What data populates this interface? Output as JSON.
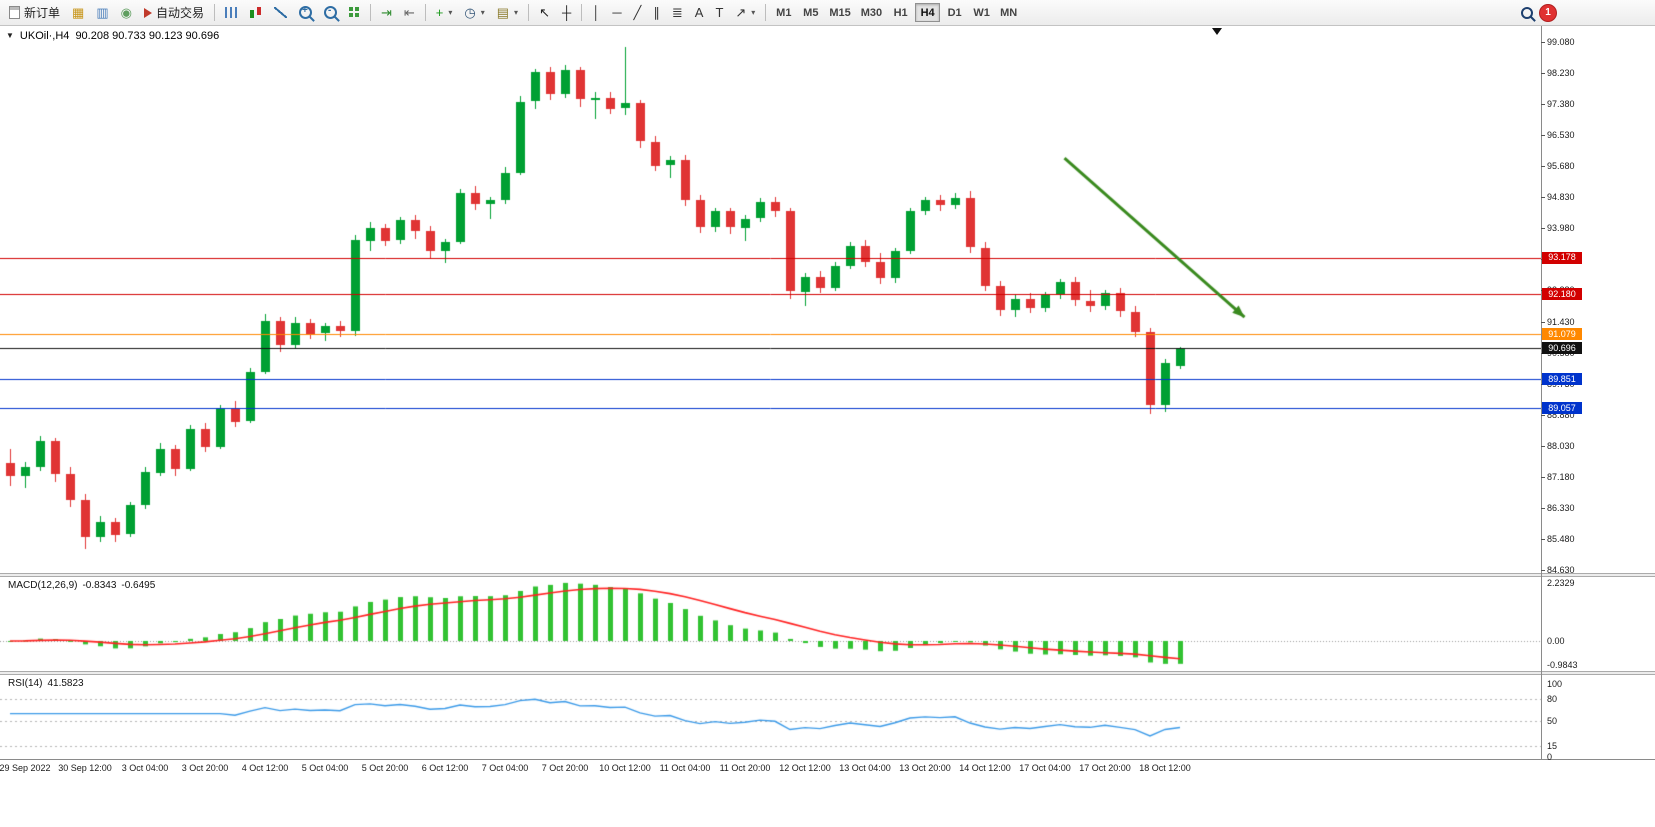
{
  "toolbar": {
    "items": [
      {
        "kind": "btn",
        "name": "new-order-button",
        "icon": "page",
        "label": "新订单"
      },
      {
        "kind": "icon",
        "name": "market-watch-icon",
        "glyph": "▦",
        "color": "#c79416"
      },
      {
        "kind": "icon",
        "name": "data-window-icon",
        "glyph": "▥",
        "color": "#4a7ebb"
      },
      {
        "kind": "icon",
        "name": "navigator-icon",
        "glyph": "◉",
        "color": "#5f9e5f"
      },
      {
        "kind": "btn",
        "name": "auto-trading-button",
        "icon": "play",
        "label": "自动交易"
      },
      {
        "kind": "sep"
      },
      {
        "kind": "css",
        "name": "bar-chart-icon",
        "css": "i-bars"
      },
      {
        "kind": "css",
        "name": "candlestick-icon",
        "css": "i-candle"
      },
      {
        "kind": "css",
        "name": "line-chart-icon",
        "css": "i-line"
      },
      {
        "kind": "css",
        "name": "zoom-in-icon",
        "css": "i-zoom i-zoomin"
      },
      {
        "kind": "css",
        "name": "zoom-out-icon",
        "css": "i-zoom i-zoomout"
      },
      {
        "kind": "css",
        "name": "tile-windows-icon",
        "css": "i-tile"
      },
      {
        "kind": "sep"
      },
      {
        "kind": "icon",
        "name": "auto-scroll-icon",
        "glyph": "⇥",
        "color": "#2e8b2e"
      },
      {
        "kind": "icon",
        "name": "chart-shift-icon",
        "glyph": "⇤",
        "color": "#666666"
      },
      {
        "kind": "sep"
      },
      {
        "kind": "drop",
        "name": "indicators-button",
        "glyph": "+",
        "color": "#1c9a1c"
      },
      {
        "kind": "drop",
        "name": "periods-button",
        "glyph": "◷",
        "color": "#335577"
      },
      {
        "kind": "drop",
        "name": "templates-button",
        "glyph": "▤",
        "color": "#8a7a2a"
      },
      {
        "kind": "sep"
      },
      {
        "kind": "icon",
        "name": "cursor-icon",
        "glyph": "↖",
        "color": "#222222"
      },
      {
        "kind": "icon",
        "name": "crosshair-icon",
        "glyph": "┼",
        "color": "#222222"
      },
      {
        "kind": "sep"
      },
      {
        "kind": "icon",
        "name": "vertical-line-icon",
        "glyph": "│",
        "color": "#333333"
      },
      {
        "kind": "icon",
        "name": "horizontal-line-icon",
        "glyph": "─",
        "color": "#333333"
      },
      {
        "kind": "icon",
        "name": "trendline-icon",
        "glyph": "╱",
        "color": "#333333"
      },
      {
        "kind": "icon",
        "name": "equidistant-channel-icon",
        "glyph": "∥",
        "color": "#333333"
      },
      {
        "kind": "icon",
        "name": "fibonacci-icon",
        "glyph": "≣",
        "color": "#333333"
      },
      {
        "kind": "icon",
        "name": "text-icon",
        "glyph": "A",
        "color": "#333333"
      },
      {
        "kind": "icon",
        "name": "label-icon",
        "glyph": "T",
        "color": "#333333"
      },
      {
        "kind": "drop",
        "name": "shapes-button",
        "glyph": "↗",
        "color": "#333333"
      },
      {
        "kind": "sep"
      },
      {
        "kind": "timeframes"
      },
      {
        "kind": "spacer"
      },
      {
        "kind": "css",
        "name": "search-icon",
        "css": "i-search"
      },
      {
        "kind": "badge",
        "name": "notification-badge",
        "label": "1"
      },
      {
        "kind": "endpad"
      }
    ],
    "timeframes": [
      "M1",
      "M5",
      "M15",
      "M30",
      "H1",
      "H4",
      "D1",
      "W1",
      "MN"
    ],
    "active_timeframe": "H4"
  },
  "chart": {
    "collapse_glyph": "▼",
    "symbol_period": "UKOil·,H4",
    "ohlc_text": "90.208 90.733 90.123 90.696",
    "axis_ticks": [
      "99.080",
      "98.230",
      "97.380",
      "96.530",
      "95.680",
      "94.830",
      "93.980",
      "93.130",
      "92.280",
      "91.430",
      "90.580",
      "89.730",
      "88.880",
      "88.030",
      "87.180",
      "86.330",
      "85.480",
      "84.630"
    ],
    "price_lines": [
      {
        "value": "93.178",
        "color": "#d20000"
      },
      {
        "value": "92.180",
        "color": "#d20000"
      },
      {
        "value": "91.079",
        "color": "#ff8800"
      },
      {
        "value": "90.696",
        "color": "#111111"
      },
      {
        "value": "89.851",
        "color": "#0033cc"
      },
      {
        "value": "89.057",
        "color": "#0033cc"
      }
    ],
    "colors": {
      "bull": "#00a032",
      "bear": "#e03434",
      "macd_hist": "#32c232",
      "macd_signal": "#ff2222",
      "rsi_line": "#3b9ae8"
    }
  },
  "indicators": {
    "macd": {
      "name": "MACD(12,26,9)",
      "value1": "-0.8343",
      "value2": "-0.6495",
      "axis": [
        "2.2329",
        "0.00",
        "-0.9843"
      ]
    },
    "rsi": {
      "name": "RSI(14)",
      "value": "41.5823",
      "axis": [
        "100",
        "80",
        "50",
        "15",
        "0"
      ],
      "levels": [
        80,
        50,
        15
      ]
    }
  },
  "chart_data": {
    "type": "candlestick",
    "symbol": "UKOil",
    "timeframe": "H4",
    "y_axis": {
      "top_price": 99.49,
      "bottom_price": 84.55
    },
    "candles": [
      [
        87.55,
        87.95,
        86.95,
        87.2
      ],
      [
        87.2,
        87.6,
        86.9,
        87.45
      ],
      [
        87.45,
        88.3,
        87.35,
        88.15
      ],
      [
        88.15,
        88.25,
        87.05,
        87.25
      ],
      [
        87.25,
        87.45,
        86.35,
        86.55
      ],
      [
        86.55,
        86.7,
        85.2,
        85.55
      ],
      [
        85.55,
        86.1,
        85.4,
        85.95
      ],
      [
        85.95,
        86.05,
        85.4,
        85.6
      ],
      [
        85.6,
        86.5,
        85.55,
        86.4
      ],
      [
        86.4,
        87.45,
        86.3,
        87.3
      ],
      [
        87.3,
        88.1,
        87.2,
        87.95
      ],
      [
        87.95,
        88.05,
        87.2,
        87.4
      ],
      [
        87.4,
        88.6,
        87.35,
        88.5
      ],
      [
        88.5,
        88.65,
        87.85,
        88.0
      ],
      [
        88.0,
        89.15,
        87.95,
        89.05
      ],
      [
        89.05,
        89.25,
        88.55,
        88.7
      ],
      [
        88.7,
        90.15,
        88.65,
        90.05
      ],
      [
        90.05,
        91.65,
        90.0,
        91.45
      ],
      [
        91.45,
        91.55,
        90.6,
        90.8
      ],
      [
        90.8,
        91.55,
        90.7,
        91.4
      ],
      [
        91.4,
        91.5,
        90.95,
        91.1
      ],
      [
        91.1,
        91.4,
        90.9,
        91.3
      ],
      [
        91.3,
        91.45,
        91.0,
        91.15
      ],
      [
        91.15,
        93.8,
        91.05,
        93.65
      ],
      [
        93.65,
        94.15,
        93.35,
        94.0
      ],
      [
        94.0,
        94.1,
        93.5,
        93.65
      ],
      [
        93.65,
        94.3,
        93.55,
        94.2
      ],
      [
        94.2,
        94.35,
        93.7,
        93.9
      ],
      [
        93.9,
        94.05,
        93.15,
        93.35
      ],
      [
        93.35,
        93.7,
        93.05,
        93.6
      ],
      [
        93.6,
        95.05,
        93.55,
        94.95
      ],
      [
        94.95,
        95.15,
        94.5,
        94.65
      ],
      [
        94.65,
        94.85,
        94.25,
        94.75
      ],
      [
        94.75,
        95.65,
        94.65,
        95.5
      ],
      [
        95.5,
        97.6,
        95.45,
        97.45
      ],
      [
        97.45,
        98.35,
        97.25,
        98.25
      ],
      [
        98.25,
        98.4,
        97.5,
        97.65
      ],
      [
        97.65,
        98.45,
        97.55,
        98.3
      ],
      [
        98.3,
        98.4,
        97.3,
        97.5
      ],
      [
        97.5,
        97.7,
        96.95,
        97.55
      ],
      [
        97.55,
        97.7,
        97.1,
        97.25
      ],
      [
        97.25,
        98.95,
        97.1,
        97.4
      ],
      [
        97.4,
        97.5,
        96.2,
        96.35
      ],
      [
        96.35,
        96.5,
        95.55,
        95.7
      ],
      [
        95.7,
        95.95,
        95.35,
        95.85
      ],
      [
        95.85,
        96.0,
        94.6,
        94.75
      ],
      [
        94.75,
        94.9,
        93.85,
        94.0
      ],
      [
        94.0,
        94.55,
        93.9,
        94.45
      ],
      [
        94.45,
        94.55,
        93.85,
        94.0
      ],
      [
        94.0,
        94.35,
        93.65,
        94.25
      ],
      [
        94.25,
        94.8,
        94.15,
        94.7
      ],
      [
        94.7,
        94.85,
        94.3,
        94.45
      ],
      [
        94.45,
        94.55,
        92.05,
        92.25
      ],
      [
        92.25,
        92.75,
        91.85,
        92.65
      ],
      [
        92.65,
        92.8,
        92.2,
        92.35
      ],
      [
        92.35,
        93.05,
        92.25,
        92.95
      ],
      [
        92.95,
        93.6,
        92.85,
        93.5
      ],
      [
        93.5,
        93.65,
        92.9,
        93.05
      ],
      [
        93.05,
        93.3,
        92.45,
        92.6
      ],
      [
        92.6,
        93.45,
        92.5,
        93.35
      ],
      [
        93.35,
        94.55,
        93.3,
        94.45
      ],
      [
        94.45,
        94.85,
        94.35,
        94.75
      ],
      [
        94.75,
        94.9,
        94.45,
        94.6
      ],
      [
        94.6,
        94.95,
        94.5,
        94.8
      ],
      [
        94.8,
        95.0,
        93.3,
        93.45
      ],
      [
        93.45,
        93.6,
        92.25,
        92.4
      ],
      [
        92.4,
        92.55,
        91.6,
        91.75
      ],
      [
        91.75,
        92.15,
        91.55,
        92.05
      ],
      [
        92.05,
        92.2,
        91.65,
        91.8
      ],
      [
        91.8,
        92.25,
        91.7,
        92.15
      ],
      [
        92.15,
        92.6,
        92.05,
        92.5
      ],
      [
        92.5,
        92.65,
        91.85,
        92.0
      ],
      [
        92.0,
        92.3,
        91.7,
        91.85
      ],
      [
        91.85,
        92.3,
        91.75,
        92.2
      ],
      [
        92.2,
        92.35,
        91.55,
        91.7
      ],
      [
        91.7,
        91.85,
        91.0,
        91.15
      ],
      [
        91.15,
        91.25,
        88.9,
        89.15
      ],
      [
        89.15,
        90.4,
        88.95,
        90.3
      ],
      [
        90.208,
        90.733,
        90.123,
        90.696
      ]
    ],
    "time_labels": [
      "29 Sep 2022",
      "30 Sep 12:00",
      "3 Oct 04:00",
      "3 Oct 20:00",
      "4 Oct 12:00",
      "5 Oct 04:00",
      "5 Oct 20:00",
      "6 Oct 12:00",
      "7 Oct 04:00",
      "7 Oct 20:00",
      "10 Oct 12:00",
      "11 Oct 04:00",
      "11 Oct 20:00",
      "12 Oct 12:00",
      "13 Oct 04:00",
      "13 Oct 20:00",
      "14 Oct 12:00",
      "17 Oct 04:00",
      "17 Oct 20:00",
      "18 Oct 12:00"
    ],
    "label_start": 1,
    "label_every": 4,
    "macd": {
      "fast": 12,
      "slow": 26,
      "signal": 9,
      "panel_max": 2.45,
      "panel_min": -1.15
    },
    "rsi": {
      "period": 14
    },
    "annotation_arrow": {
      "from_bar": 70.3,
      "from_price": 95.9,
      "to_bar": 82.3,
      "to_price": 91.55,
      "color": "#3a8a1f"
    }
  }
}
